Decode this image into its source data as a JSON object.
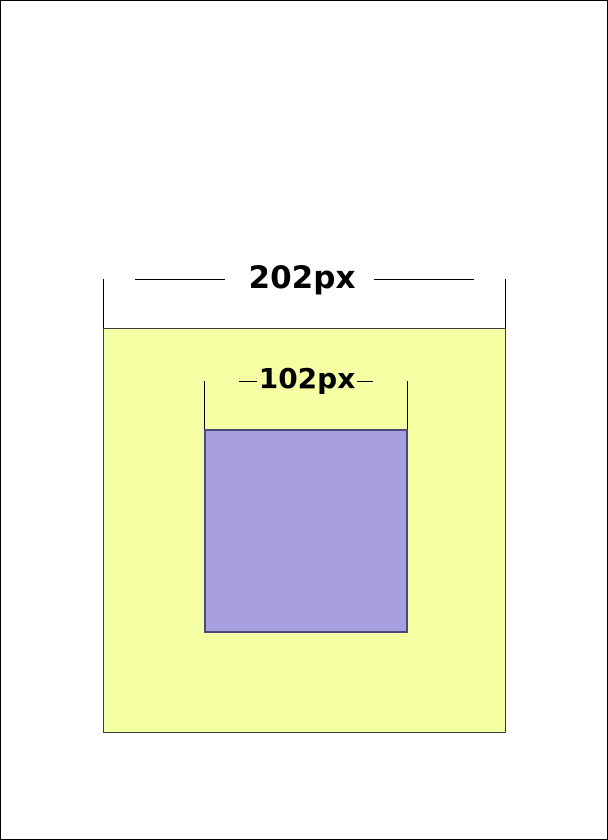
{
  "diagram": {
    "outer": {
      "dimension_label": "202px",
      "fill": "#f5ffa3"
    },
    "inner": {
      "dimension_label": "102px",
      "fill": "#a89fe0"
    },
    "page_border_color": "#000000"
  }
}
